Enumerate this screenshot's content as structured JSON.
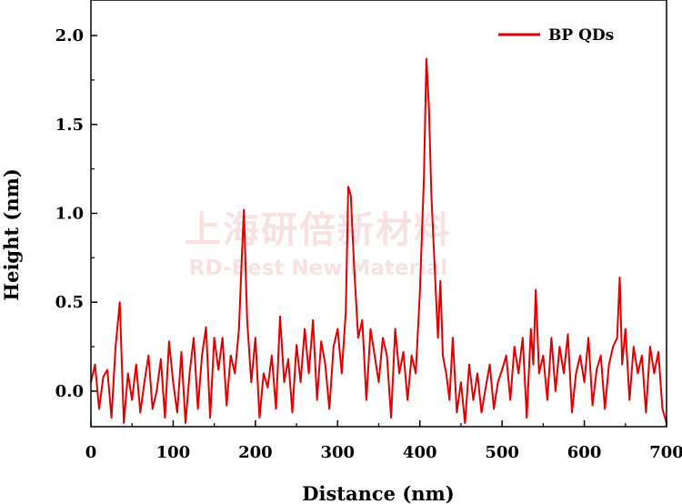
{
  "chart_data": {
    "type": "line",
    "xlabel": "Distance (nm)",
    "ylabel": "Height (nm)",
    "xlim": [
      0,
      700
    ],
    "ylim": [
      -0.2,
      2.2
    ],
    "xticks": [
      0,
      100,
      200,
      300,
      400,
      500,
      600,
      700
    ],
    "yticks": [
      0.0,
      0.5,
      1.0,
      1.5,
      2.0
    ],
    "x_tick_labels": [
      "0",
      "100",
      "200",
      "300",
      "400",
      "500",
      "600",
      "700"
    ],
    "y_tick_labels": [
      "0.0",
      "0.5",
      "1.0",
      "1.5",
      "2.0"
    ],
    "grid": false,
    "legend_position": "top-right",
    "series": [
      {
        "name": "BP QDs",
        "color": "#e00000",
        "x": [
          0,
          5,
          10,
          15,
          20,
          25,
          30,
          35,
          40,
          45,
          50,
          55,
          60,
          65,
          70,
          75,
          80,
          85,
          90,
          95,
          100,
          105,
          110,
          115,
          120,
          125,
          130,
          135,
          140,
          145,
          150,
          155,
          160,
          165,
          170,
          175,
          180,
          183,
          186,
          190,
          195,
          200,
          205,
          210,
          215,
          220,
          225,
          230,
          235,
          240,
          245,
          250,
          255,
          260,
          265,
          270,
          275,
          280,
          285,
          290,
          295,
          300,
          305,
          310,
          313,
          316,
          320,
          325,
          330,
          335,
          340,
          345,
          350,
          355,
          360,
          365,
          370,
          375,
          380,
          385,
          390,
          395,
          400,
          405,
          408,
          411,
          414,
          418,
          422,
          425,
          428,
          432,
          436,
          440,
          445,
          450,
          455,
          460,
          465,
          470,
          475,
          480,
          485,
          490,
          495,
          500,
          505,
          510,
          515,
          520,
          525,
          530,
          535,
          538,
          541,
          545,
          550,
          555,
          560,
          565,
          570,
          575,
          580,
          585,
          590,
          595,
          600,
          605,
          610,
          615,
          620,
          625,
          630,
          635,
          640,
          643,
          646,
          650,
          655,
          660,
          665,
          670,
          675,
          680,
          685,
          690,
          695,
          700
        ],
        "values": [
          0.05,
          0.15,
          -0.1,
          0.08,
          0.12,
          -0.15,
          0.25,
          0.5,
          -0.18,
          0.1,
          -0.05,
          0.15,
          -0.12,
          0.05,
          0.2,
          -0.1,
          0.0,
          0.18,
          -0.15,
          0.28,
          0.05,
          -0.12,
          0.22,
          -0.18,
          0.1,
          0.3,
          -0.1,
          0.2,
          0.36,
          -0.15,
          0.3,
          0.12,
          0.3,
          -0.08,
          0.2,
          0.1,
          0.35,
          0.7,
          1.02,
          0.4,
          0.05,
          0.3,
          -0.15,
          0.1,
          0.02,
          0.2,
          -0.1,
          0.42,
          0.05,
          0.18,
          -0.12,
          0.26,
          0.05,
          0.35,
          0.1,
          0.4,
          -0.05,
          0.28,
          0.15,
          -0.1,
          0.25,
          0.35,
          0.1,
          0.45,
          1.15,
          1.1,
          0.7,
          0.3,
          0.4,
          -0.05,
          0.35,
          0.2,
          0.05,
          0.3,
          0.2,
          -0.15,
          0.35,
          0.1,
          0.22,
          -0.05,
          0.2,
          0.1,
          0.55,
          1.2,
          1.87,
          1.6,
          1.1,
          0.7,
          0.3,
          0.62,
          0.2,
          0.1,
          -0.05,
          0.3,
          -0.12,
          0.05,
          -0.18,
          0.15,
          -0.05,
          0.1,
          -0.12,
          0.02,
          0.15,
          -0.1,
          0.05,
          0.12,
          0.2,
          -0.05,
          0.25,
          0.1,
          0.3,
          -0.15,
          0.35,
          0.15,
          0.57,
          0.1,
          0.2,
          -0.05,
          0.3,
          0.0,
          0.25,
          0.1,
          0.32,
          -0.12,
          0.1,
          0.2,
          0.05,
          0.3,
          -0.08,
          0.12,
          0.2,
          -0.1,
          0.15,
          0.25,
          0.3,
          0.64,
          0.15,
          0.35,
          -0.05,
          0.25,
          0.1,
          0.2,
          -0.12,
          0.25,
          0.1,
          0.22,
          -0.1,
          -0.18
        ]
      }
    ]
  },
  "watermark": {
    "cn": "上海研倍新材料",
    "en": "RD-Best New Material"
  }
}
